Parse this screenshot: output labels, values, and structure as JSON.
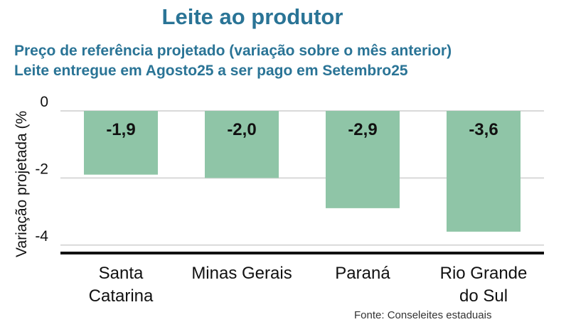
{
  "title": "Leite ao produtor",
  "subtitle_line1": "Preço de referência projetado (variação sobre o mês anterior)",
  "subtitle_line2": "Leite entregue em Agosto25 a ser pago em Setembro25",
  "source": "Fonte: Conseleites estaduais",
  "colors": {
    "bar": "#8fc5a7",
    "title": "#2a7496",
    "grid": "#d9d9d9",
    "axis": "#111111"
  },
  "chart_data": {
    "type": "bar",
    "title": "Leite ao produtor",
    "ylabel": "Variação projetada (%",
    "xlabel": "",
    "categories": [
      [
        "Santa",
        "Catarina"
      ],
      [
        "Minas Gerais"
      ],
      [
        "Paraná"
      ],
      [
        "Rio Grande",
        "do Sul"
      ]
    ],
    "values": [
      -1.9,
      -2.0,
      -2.9,
      -3.6
    ],
    "value_labels": [
      "-1,9",
      "-2,0",
      "-2,9",
      "-3,6"
    ],
    "yticks": [
      0,
      -2,
      -4
    ],
    "ytick_labels": [
      "0",
      "-2",
      "-4"
    ],
    "ylim": [
      -4.2,
      0
    ],
    "grid": true
  }
}
